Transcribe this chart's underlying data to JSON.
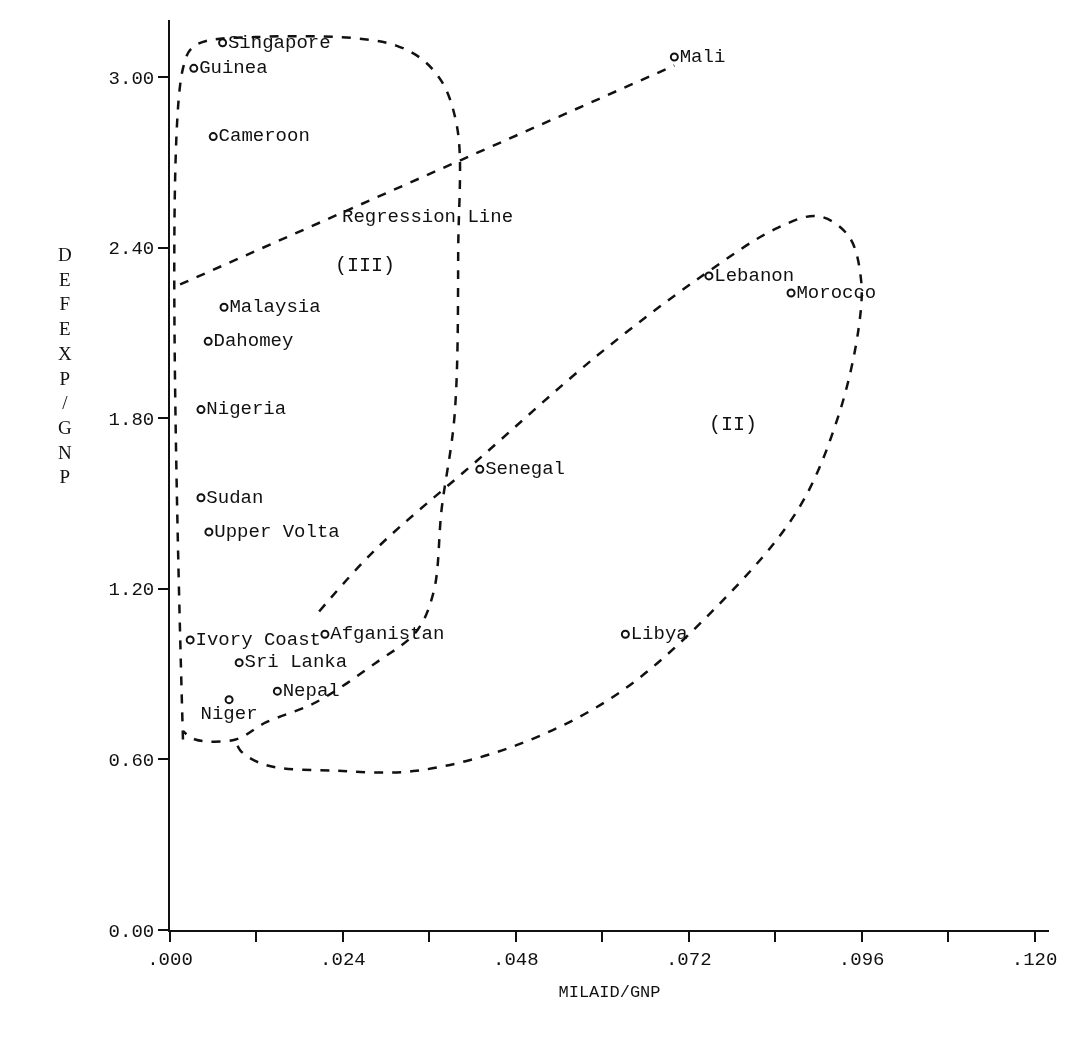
{
  "chart_data": {
    "type": "scatter",
    "xlabel": "MILAID/GNP",
    "ylabel": "DEFEXP/GNP",
    "marker": "circle",
    "xlim": [
      0,
      0.122
    ],
    "ylim": [
      0,
      3.2
    ],
    "xticks": [
      {
        "value": 0,
        "label": ".000"
      },
      {
        "value": 0.012,
        "label": null
      },
      {
        "value": 0.024,
        "label": ".024"
      },
      {
        "value": 0.036,
        "label": null
      },
      {
        "value": 0.048,
        "label": ".048"
      },
      {
        "value": 0.06,
        "label": null
      },
      {
        "value": 0.072,
        "label": ".072"
      },
      {
        "value": 0.084,
        "label": null
      },
      {
        "value": 0.096,
        "label": ".096"
      },
      {
        "value": 0.108,
        "label": null
      },
      {
        "value": 0.12,
        "label": ".120"
      }
    ],
    "yticks": [
      {
        "value": 0,
        "label": "0.00"
      },
      {
        "value": 0.6,
        "label": "0.60"
      },
      {
        "value": 1.2,
        "label": "1.20"
      },
      {
        "value": 1.8,
        "label": "1.80"
      },
      {
        "value": 2.4,
        "label": "2.40"
      },
      {
        "value": 3.0,
        "label": "3.00"
      }
    ],
    "annotations": [
      "(III)",
      "(II)"
    ],
    "series": [
      {
        "name": "Singapore",
        "color": "#111111",
        "x": [
          0.0073
        ],
        "values": [
          3.12
        ]
      },
      {
        "name": "Guinea",
        "color": "#111111",
        "x": [
          0.0033
        ],
        "values": [
          3.03
        ]
      },
      {
        "name": "Cameroon",
        "color": "#111111",
        "x": [
          0.006
        ],
        "values": [
          2.79
        ]
      },
      {
        "name": "Malaysia",
        "color": "#111111",
        "x": [
          0.0075
        ],
        "values": [
          2.19
        ]
      },
      {
        "name": "Dahomey",
        "color": "#111111",
        "x": [
          0.0053
        ],
        "values": [
          2.07
        ]
      },
      {
        "name": "Nigeria",
        "color": "#111111",
        "x": [
          0.0043
        ],
        "values": [
          1.83
        ]
      },
      {
        "name": "Sudan",
        "color": "#111111",
        "x": [
          0.0043
        ],
        "values": [
          1.52
        ]
      },
      {
        "name": "Upper Volta",
        "color": "#111111",
        "x": [
          0.0054
        ],
        "values": [
          1.4
        ]
      },
      {
        "name": "Ivory Coast",
        "color": "#111111",
        "x": [
          0.0028
        ],
        "values": [
          1.02
        ]
      },
      {
        "name": "Afganistan",
        "color": "#111111",
        "x": [
          0.0215
        ],
        "values": [
          1.04
        ]
      },
      {
        "name": "Sri Lanka",
        "color": "#111111",
        "x": [
          0.0096
        ],
        "values": [
          0.94
        ]
      },
      {
        "name": "Nepal",
        "color": "#111111",
        "x": [
          0.0149
        ],
        "values": [
          0.84
        ]
      },
      {
        "name": "Niger",
        "color": "#111111",
        "x": [
          0.0082
        ],
        "values": [
          0.81
        ]
      },
      {
        "name": "Senegal",
        "color": "#111111",
        "x": [
          0.043
        ],
        "values": [
          1.62
        ]
      },
      {
        "name": "Libya",
        "color": "#111111",
        "x": [
          0.0632
        ],
        "values": [
          1.04
        ]
      },
      {
        "name": "Lebanon",
        "color": "#111111",
        "x": [
          0.0748
        ],
        "values": [
          2.3
        ]
      },
      {
        "name": "Morocco",
        "color": "#111111",
        "x": [
          0.0862
        ],
        "values": [
          2.24
        ]
      },
      {
        "name": "Mali",
        "color": "#111111",
        "x": [
          0.07
        ],
        "values": [
          3.07
        ]
      },
      {
        "name": "Regression Line",
        "type": "line",
        "line_style": "dashed",
        "marker": "none",
        "color": "#111111",
        "x": [
          0.0014,
          0.07
        ],
        "values": [
          2.27,
          3.04
        ]
      },
      {
        "type": "line",
        "line_style": "dashed",
        "marker": "none",
        "color": "#111111",
        "x": [
          0.0018,
          0.0018,
          0.0035,
          0.0119,
          0.0314,
          0.037,
          0.0398,
          0.04,
          0.0395,
          0.0377,
          0.0366,
          0.0342,
          0.0286,
          0.0202,
          0.0133,
          0.0091,
          0.0035,
          0.0018
        ],
        "values": [
          0.67,
          3.03,
          3.11,
          3.14,
          3.11,
          3.01,
          2.83,
          2.39,
          1.81,
          1.48,
          1.19,
          1.05,
          0.94,
          0.8,
          0.73,
          0.67,
          0.67,
          0.7
        ]
      },
      {
        "type": "line",
        "line_style": "dashed",
        "marker": "none",
        "color": "#111111",
        "x": [
          0.0207,
          0.0286,
          0.0426,
          0.0593,
          0.0733,
          0.0844,
          0.09,
          0.0942,
          0.0959,
          0.0956,
          0.0928,
          0.0872,
          0.076,
          0.0621,
          0.0481,
          0.0342,
          0.023,
          0.0133,
          0.0098,
          0.0091
        ],
        "values": [
          1.12,
          1.34,
          1.65,
          2.02,
          2.29,
          2.47,
          2.51,
          2.44,
          2.29,
          2.12,
          1.81,
          1.48,
          1.14,
          0.83,
          0.65,
          0.56,
          0.56,
          0.58,
          0.63,
          0.67
        ]
      }
    ]
  }
}
